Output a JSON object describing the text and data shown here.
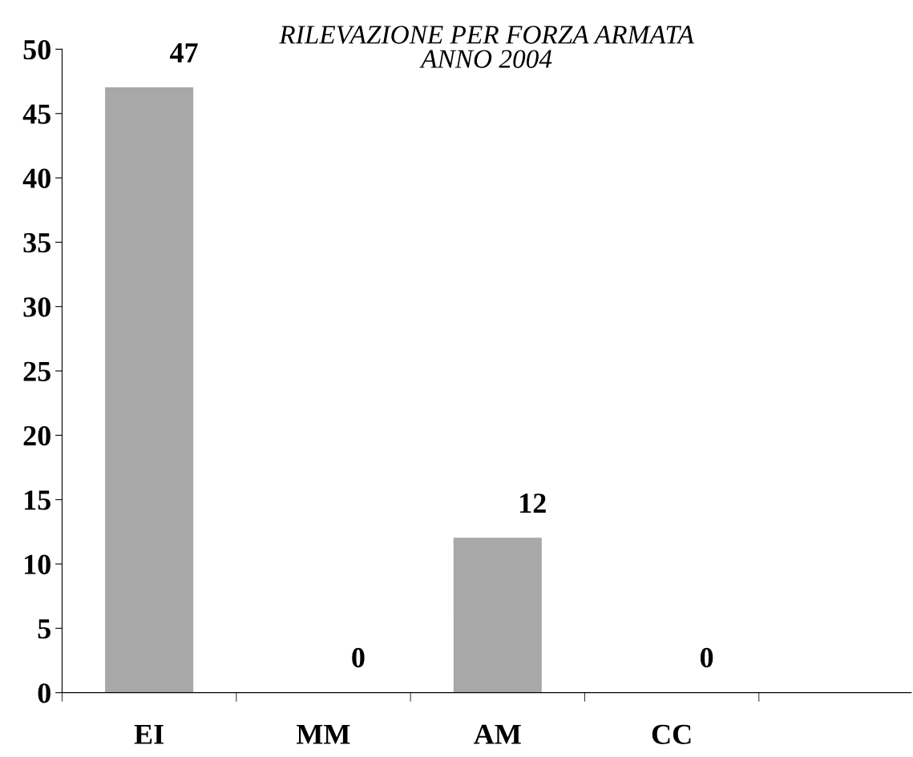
{
  "chart_data": {
    "type": "bar",
    "title": "RILEVAZIONE PER FORZA ARMATA\nANNO 2004",
    "categories": [
      "EI",
      "MM",
      "AM",
      "CC"
    ],
    "values": [
      47,
      0,
      12,
      0
    ],
    "color": "#a8a8a8",
    "ylim": [
      0,
      50
    ],
    "yticks": [
      0,
      5,
      10,
      15,
      20,
      25,
      30,
      35,
      40,
      45,
      50
    ],
    "data_labels": true,
    "grid": false,
    "legend": false
  }
}
